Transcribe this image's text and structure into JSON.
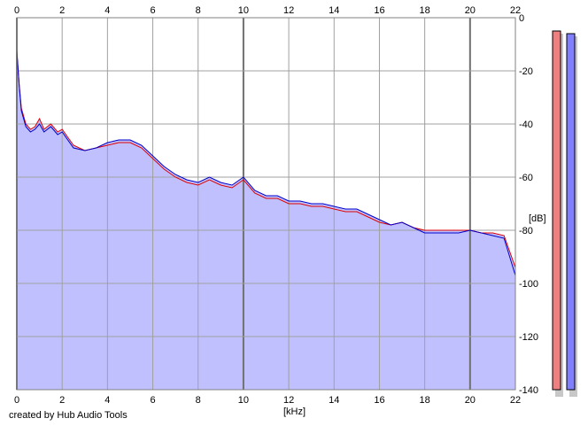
{
  "credit": "created by Hub Audio Tools",
  "chart_data": {
    "type": "line",
    "xlabel": "[kHz]",
    "ylabel": "[dB]",
    "xlim": [
      0,
      22
    ],
    "ylim": [
      -140,
      0
    ],
    "xticks": [
      0,
      2,
      4,
      6,
      8,
      10,
      12,
      14,
      16,
      18,
      20,
      22
    ],
    "yticks": [
      0,
      -20,
      -40,
      -60,
      -80,
      -100,
      -120,
      -140
    ],
    "grid": true,
    "fill_below": true,
    "colors": {
      "fill": "#c0c0ff",
      "left": "#e00000",
      "right": "#0000c8",
      "grid": "#a0a0a0"
    },
    "series": [
      {
        "x": [
          0,
          0.1,
          0.2,
          0.4,
          0.6,
          0.8,
          1,
          1.2,
          1.5,
          1.8,
          2,
          2.5,
          3,
          3.5,
          4,
          4.5,
          5,
          5.5,
          6,
          6.5,
          7,
          7.5,
          8,
          8.5,
          9,
          9.5,
          10,
          10.5,
          11,
          11.5,
          12,
          12.5,
          13,
          13.5,
          14,
          14.5,
          15,
          15.5,
          16,
          16.5,
          17,
          17.5,
          18,
          18.5,
          19,
          19.5,
          20,
          20.5,
          21,
          21.5,
          22
        ],
        "values": [
          -13,
          -25,
          -34,
          -40,
          -42,
          -41,
          -38,
          -42,
          -40,
          -43,
          -42,
          -48,
          -50,
          -49,
          -48,
          -47,
          -47,
          -49,
          -53,
          -57,
          -60,
          -62,
          -63,
          -61,
          -63,
          -64,
          -61,
          -66,
          -68,
          -68,
          -70,
          -70,
          -71,
          -71,
          -72,
          -73,
          -73,
          -75,
          -77,
          -78,
          -77,
          -79,
          -80,
          -80,
          -80,
          -80,
          -80,
          -81,
          -81,
          -82,
          -94
        ]
      },
      {
        "x": [
          0,
          0.1,
          0.2,
          0.4,
          0.6,
          0.8,
          1,
          1.2,
          1.5,
          1.8,
          2,
          2.5,
          3,
          3.5,
          4,
          4.5,
          5,
          5.5,
          6,
          6.5,
          7,
          7.5,
          8,
          8.5,
          9,
          9.5,
          10,
          10.5,
          11,
          11.5,
          12,
          12.5,
          13,
          13.5,
          14,
          14.5,
          15,
          15.5,
          16,
          16.5,
          17,
          17.5,
          18,
          18.5,
          19,
          19.5,
          20,
          20.5,
          21,
          21.5,
          22
        ],
        "values": [
          -12,
          -25,
          -35,
          -41,
          -43,
          -42,
          -40,
          -43,
          -41,
          -44,
          -43,
          -49,
          -50,
          -49,
          -47,
          -46,
          -46,
          -48,
          -52,
          -56,
          -59,
          -61,
          -62,
          -60,
          -62,
          -63,
          -60,
          -65,
          -67,
          -67,
          -69,
          -69,
          -70,
          -70,
          -71,
          -72,
          -72,
          -74,
          -76,
          -78,
          -77,
          -79,
          -81,
          -81,
          -81,
          -81,
          -80,
          -81,
          -82,
          -83,
          -97
        ]
      }
    ],
    "meters": [
      {
        "value": -5,
        "color": "#f08080"
      },
      {
        "value": -6,
        "color": "#8080ff"
      }
    ]
  }
}
